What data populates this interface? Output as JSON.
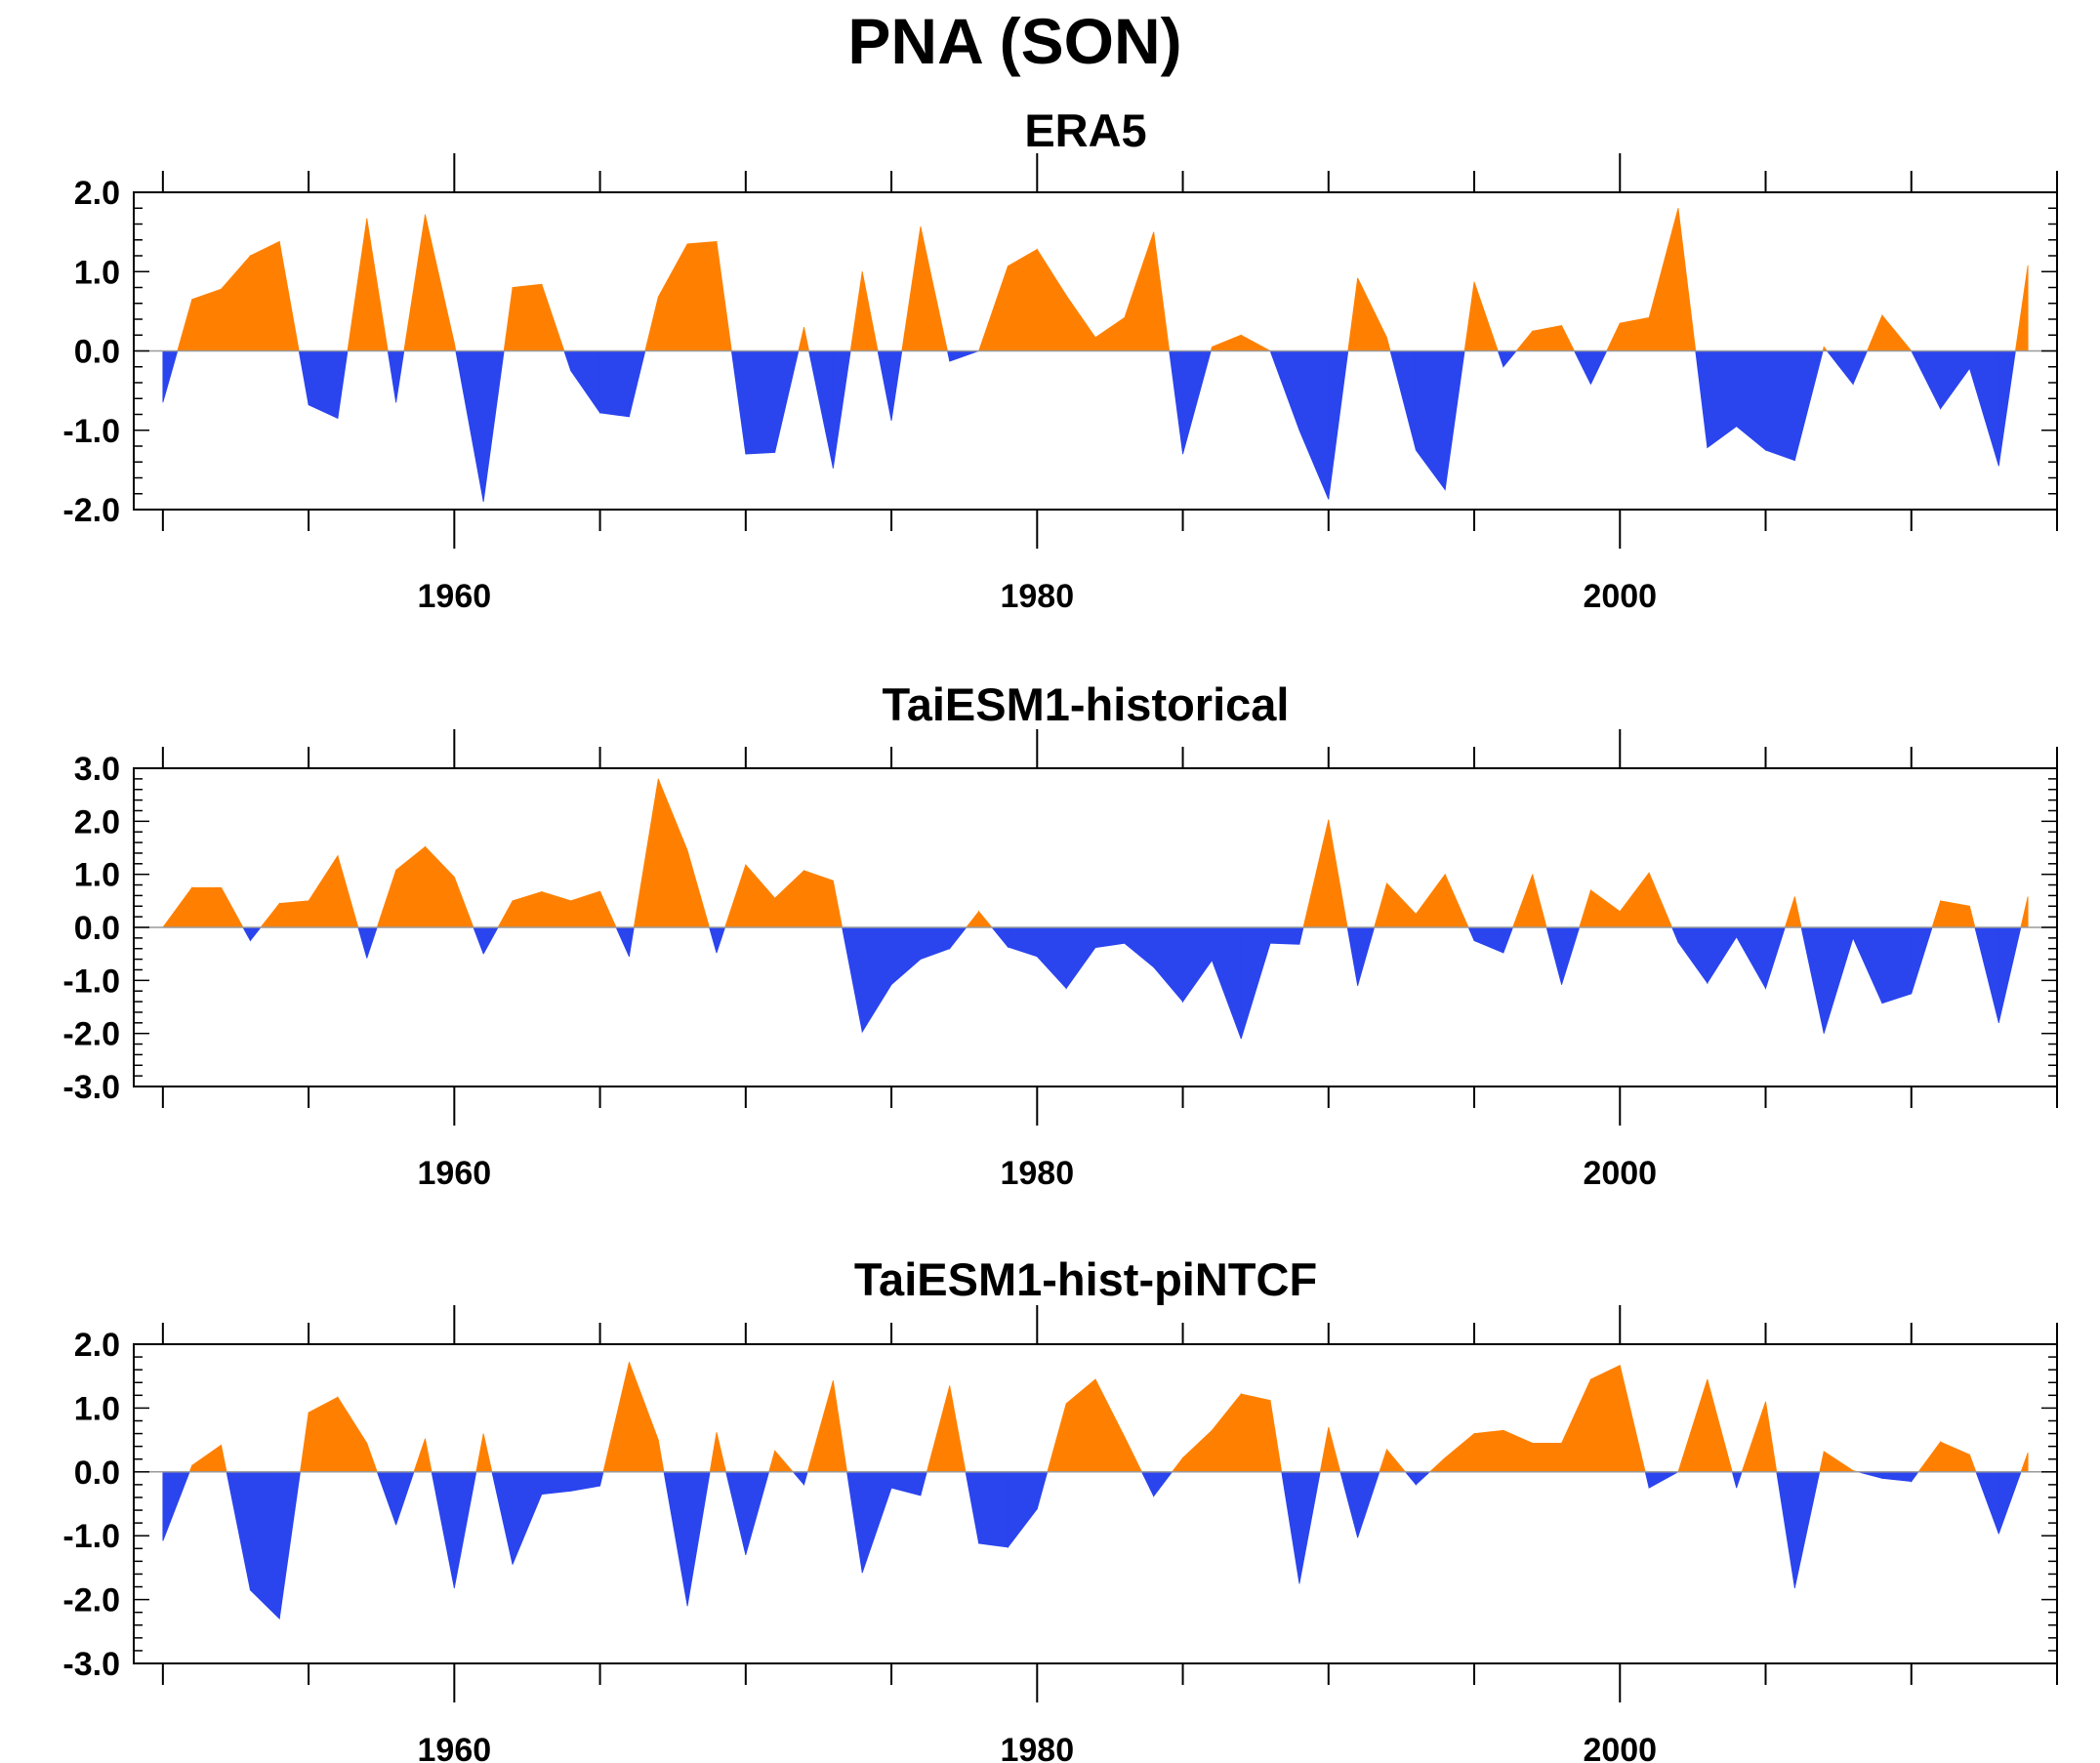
{
  "title": "PNA (SON)",
  "colors": {
    "positive": "#ff8000",
    "negative": "#2a44ee",
    "axis": "#000000"
  },
  "chart_data": [
    {
      "type": "area",
      "title": "ERA5",
      "xlim": [
        1949,
        2015
      ],
      "ylim": [
        -2.0,
        2.0
      ],
      "x_ticks": [
        1960,
        1980,
        2000
      ],
      "y_ticks": [
        -2.0,
        -1.0,
        0.0,
        1.0,
        2.0
      ],
      "y_tick_labels": [
        "-2.0",
        "-1.0",
        "0.0",
        "1.0",
        "2.0"
      ],
      "x": [
        1950,
        1951,
        1952,
        1953,
        1954,
        1955,
        1956,
        1957,
        1958,
        1959,
        1960,
        1961,
        1962,
        1963,
        1964,
        1965,
        1966,
        1967,
        1968,
        1969,
        1970,
        1971,
        1972,
        1973,
        1974,
        1975,
        1976,
        1977,
        1978,
        1979,
        1980,
        1981,
        1982,
        1983,
        1984,
        1985,
        1986,
        1987,
        1988,
        1989,
        1990,
        1991,
        1992,
        1993,
        1994,
        1995,
        1996,
        1997,
        1998,
        1999,
        2000,
        2001,
        2002,
        2003,
        2004,
        2005,
        2006,
        2007,
        2008,
        2009,
        2010,
        2011,
        2012,
        2013,
        2014
      ],
      "values": [
        -0.65,
        0.65,
        0.78,
        1.2,
        1.38,
        -0.68,
        -0.85,
        1.67,
        -0.65,
        1.72,
        0.1,
        -1.9,
        0.8,
        0.84,
        -0.25,
        -0.78,
        -0.83,
        0.68,
        1.35,
        1.38,
        -1.3,
        -1.28,
        0.3,
        -1.48,
        1.0,
        -0.88,
        1.57,
        -0.13,
        0.0,
        1.07,
        1.28,
        0.7,
        0.17,
        0.42,
        1.5,
        -1.3,
        0.05,
        0.2,
        0.0,
        -1.0,
        -1.87,
        0.92,
        0.17,
        -1.25,
        -1.75,
        0.87,
        -0.2,
        0.25,
        0.32,
        -0.42,
        0.35,
        0.42,
        1.8,
        -1.22,
        -0.95,
        -1.25,
        -1.38,
        0.05,
        -0.42,
        0.45,
        0.0,
        -0.73,
        -0.22,
        -1.45,
        1.08
      ]
    },
    {
      "type": "area",
      "title": "TaiESM1-historical",
      "xlim": [
        1949,
        2015
      ],
      "ylim": [
        -3.0,
        3.0
      ],
      "x_ticks": [
        1960,
        1980,
        2000
      ],
      "y_ticks": [
        -3.0,
        -2.0,
        -1.0,
        0.0,
        1.0,
        2.0,
        3.0
      ],
      "y_tick_labels": [
        "-3.0",
        "-2.0",
        "-1.0",
        "0.0",
        "1.0",
        "2.0",
        "3.0"
      ],
      "x": [
        1950,
        1951,
        1952,
        1953,
        1954,
        1955,
        1956,
        1957,
        1958,
        1959,
        1960,
        1961,
        1962,
        1963,
        1964,
        1965,
        1966,
        1967,
        1968,
        1969,
        1970,
        1971,
        1972,
        1973,
        1974,
        1975,
        1976,
        1977,
        1978,
        1979,
        1980,
        1981,
        1982,
        1983,
        1984,
        1985,
        1986,
        1987,
        1988,
        1989,
        1990,
        1991,
        1992,
        1993,
        1994,
        1995,
        1996,
        1997,
        1998,
        1999,
        2000,
        2001,
        2002,
        2003,
        2004,
        2005,
        2006,
        2007,
        2008,
        2009,
        2010,
        2011,
        2012,
        2013,
        2014
      ],
      "values": [
        0.0,
        0.75,
        0.75,
        -0.25,
        0.45,
        0.5,
        1.35,
        -0.58,
        1.08,
        1.52,
        0.95,
        -0.5,
        0.5,
        0.67,
        0.5,
        0.68,
        -0.55,
        2.8,
        1.45,
        -0.48,
        1.18,
        0.55,
        1.07,
        0.88,
        -1.97,
        -1.08,
        -0.6,
        -0.4,
        0.3,
        -0.37,
        -0.55,
        -1.15,
        -0.38,
        -0.3,
        -0.75,
        -1.4,
        -0.62,
        -2.1,
        -0.3,
        -0.32,
        2.03,
        -1.1,
        0.83,
        0.25,
        1.0,
        -0.25,
        -0.48,
        1.0,
        -1.08,
        0.7,
        0.3,
        1.03,
        -0.28,
        -1.05,
        -0.18,
        -1.15,
        0.58,
        -2.0,
        -0.2,
        -1.43,
        -1.25,
        0.5,
        0.4,
        -1.8,
        0.58
      ]
    },
    {
      "type": "area",
      "title": "TaiESM1-hist-piNTCF",
      "xlim": [
        1949,
        2015
      ],
      "ylim": [
        -3.0,
        2.0
      ],
      "x_ticks": [
        1960,
        1980,
        2000
      ],
      "y_ticks": [
        -3.0,
        -2.0,
        -1.0,
        0.0,
        1.0,
        2.0
      ],
      "y_tick_labels": [
        "-3.0",
        "-2.0",
        "-1.0",
        "0.0",
        "1.0",
        "2.0"
      ],
      "x": [
        1950,
        1951,
        1952,
        1953,
        1954,
        1955,
        1956,
        1957,
        1958,
        1959,
        1960,
        1961,
        1962,
        1963,
        1964,
        1965,
        1966,
        1967,
        1968,
        1969,
        1970,
        1971,
        1972,
        1973,
        1974,
        1975,
        1976,
        1977,
        1978,
        1979,
        1980,
        1981,
        1982,
        1983,
        1984,
        1985,
        1986,
        1987,
        1988,
        1989,
        1990,
        1991,
        1992,
        1993,
        1994,
        1995,
        1996,
        1997,
        1998,
        1999,
        2000,
        2001,
        2002,
        2003,
        2004,
        2005,
        2006,
        2007,
        2008,
        2009,
        2010,
        2011,
        2012,
        2013,
        2014
      ],
      "values": [
        -1.08,
        0.1,
        0.42,
        -1.85,
        -2.3,
        0.93,
        1.17,
        0.45,
        -0.83,
        0.52,
        -1.82,
        0.6,
        -1.45,
        -0.35,
        -0.3,
        -0.22,
        1.72,
        0.5,
        -2.1,
        0.62,
        -1.3,
        0.33,
        -0.2,
        1.43,
        -1.58,
        -0.25,
        -0.37,
        1.35,
        -1.12,
        -1.18,
        -0.58,
        1.07,
        1.45,
        0.55,
        -0.38,
        0.22,
        0.65,
        1.22,
        1.12,
        -1.75,
        0.7,
        -1.03,
        0.35,
        -0.2,
        0.22,
        0.6,
        0.65,
        0.45,
        0.45,
        1.45,
        1.67,
        -0.25,
        0.0,
        1.45,
        -0.25,
        1.1,
        -1.82,
        0.32,
        0.02,
        -0.1,
        -0.15,
        0.47,
        0.27,
        -0.97,
        0.3
      ]
    }
  ]
}
